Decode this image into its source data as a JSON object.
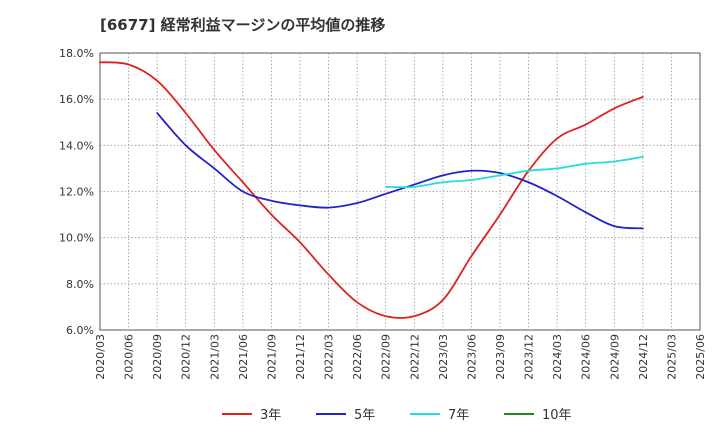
{
  "chart_data": {
    "type": "line",
    "title": "[6677]  経常利益マージンの平均値の推移",
    "ylim": [
      6.0,
      18.0
    ],
    "y_ticks": [
      "6.0%",
      "8.0%",
      "10.0%",
      "12.0%",
      "14.0%",
      "16.0%",
      "18.0%"
    ],
    "y_tick_values": [
      6,
      8,
      10,
      12,
      14,
      16,
      18
    ],
    "x_tick_labels": [
      "2020/03",
      "2020/06",
      "2020/09",
      "2020/12",
      "2021/03",
      "2021/06",
      "2021/09",
      "2021/12",
      "2022/03",
      "2022/06",
      "2022/09",
      "2022/12",
      "2023/03",
      "2023/06",
      "2023/09",
      "2023/12",
      "2024/03",
      "2024/06",
      "2024/09",
      "2024/12",
      "2025/03",
      "2025/06"
    ],
    "grid": true,
    "legend_position": "bottom",
    "series": [
      {
        "name": "3年",
        "color": "#dd2222",
        "values": [
          17.6,
          17.5,
          16.8,
          15.4,
          13.8,
          12.4,
          11.0,
          9.8,
          8.4,
          7.2,
          6.6,
          6.6,
          7.3,
          9.2,
          11.0,
          12.9,
          14.3,
          14.9,
          15.6,
          16.1
        ]
      },
      {
        "name": "5年",
        "color": "#2222cc",
        "values": [
          null,
          null,
          15.4,
          14.0,
          13.0,
          12.0,
          11.6,
          11.4,
          11.3,
          11.5,
          11.9,
          12.3,
          12.7,
          12.9,
          12.8,
          12.4,
          11.8,
          11.1,
          10.5,
          10.4
        ]
      },
      {
        "name": "7年",
        "color": "#22dddd",
        "values": [
          null,
          null,
          null,
          null,
          null,
          null,
          null,
          null,
          null,
          null,
          12.2,
          12.2,
          12.4,
          12.5,
          12.7,
          12.9,
          13.0,
          13.2,
          13.3,
          13.5
        ]
      },
      {
        "name": "10年",
        "color": "#228822",
        "values": [
          null,
          null,
          null,
          null,
          null,
          null,
          null,
          null,
          null,
          null,
          null,
          null,
          null,
          null,
          null,
          null,
          null,
          null,
          null,
          null
        ]
      }
    ]
  }
}
